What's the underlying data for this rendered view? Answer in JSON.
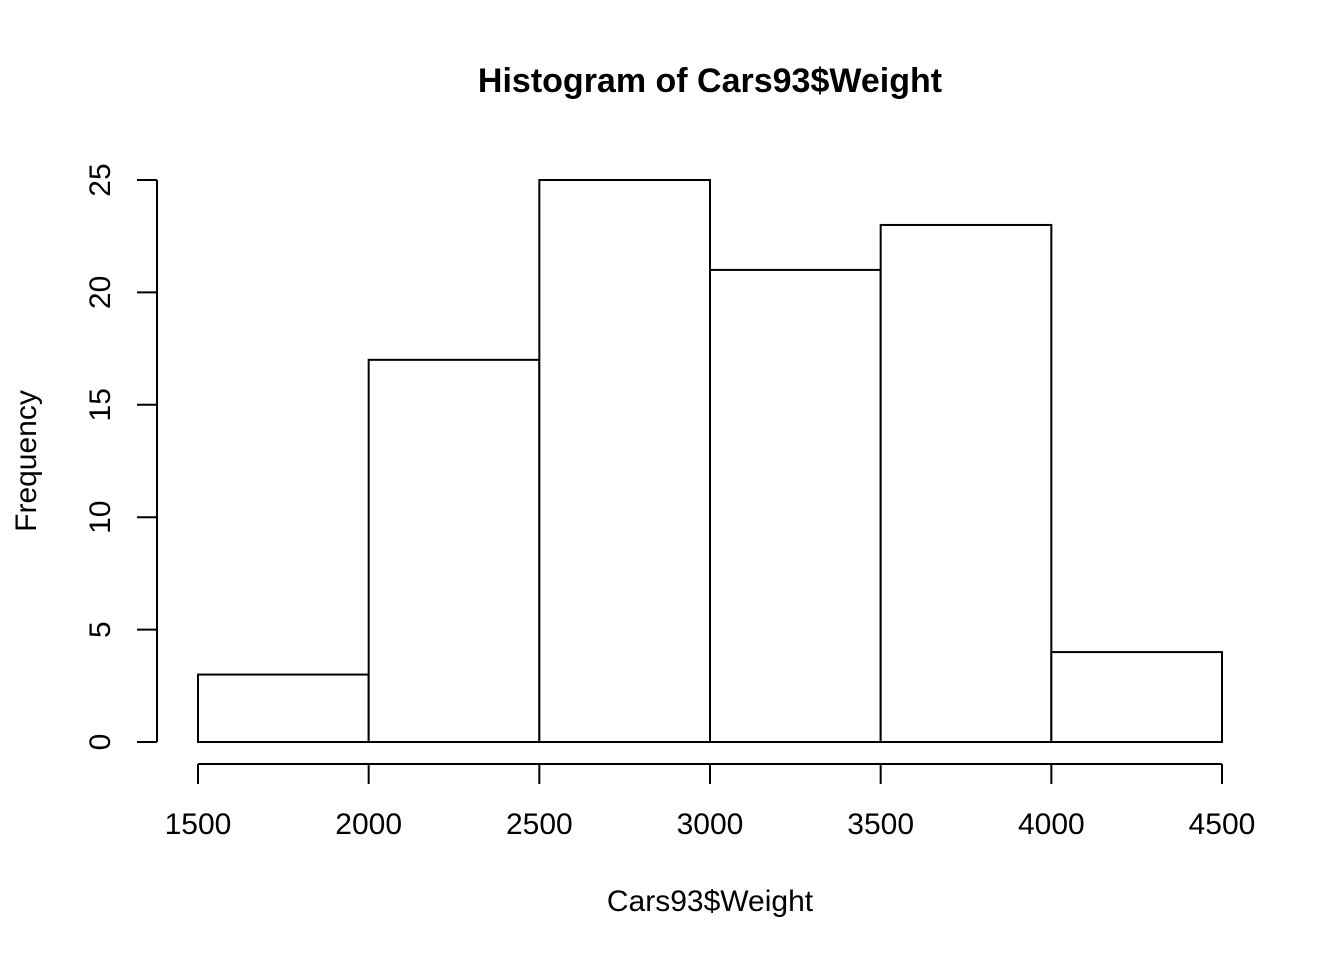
{
  "chart_data": {
    "type": "bar",
    "title": "Histogram of Cars93$Weight",
    "xlabel": "Cars93$Weight",
    "ylabel": "Frequency",
    "bins": [
      {
        "from": 1500,
        "to": 2000,
        "count": 3
      },
      {
        "from": 2000,
        "to": 2500,
        "count": 17
      },
      {
        "from": 2500,
        "to": 3000,
        "count": 25
      },
      {
        "from": 3000,
        "to": 3500,
        "count": 21
      },
      {
        "from": 3500,
        "to": 4000,
        "count": 23
      },
      {
        "from": 4000,
        "to": 4500,
        "count": 4
      }
    ],
    "xlim": [
      1500,
      4500
    ],
    "ylim": [
      0,
      25
    ],
    "x_ticks": [
      "1500",
      "2000",
      "2500",
      "3000",
      "3500",
      "4000",
      "4500"
    ],
    "y_ticks": [
      "0",
      "5",
      "10",
      "15",
      "20",
      "25"
    ],
    "grid": false,
    "bar_fill": "#ffffff",
    "bar_stroke": "#000000"
  }
}
